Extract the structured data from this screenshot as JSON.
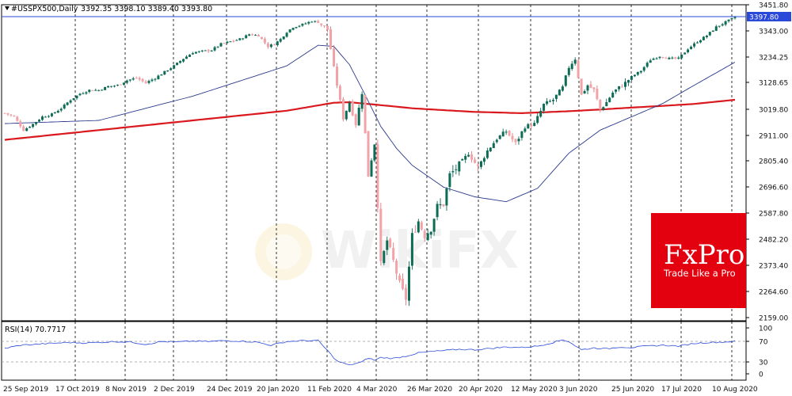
{
  "header": {
    "symbol": "#USSPX500,Daily",
    "ohlc": "3392.35 3398.10 3389.40 3393.80"
  },
  "brand": {
    "name": "FxPro",
    "tagline": "Trade Like a Pro",
    "color": "#e3000f"
  },
  "watermark": "WikiFX",
  "chart_data": [
    {
      "type": "candlestick",
      "title": "#USSPX500,Daily",
      "yticks": [
        "3451.80",
        "3343.00",
        "3234.25",
        "3128.65",
        "3019.80",
        "2911.00",
        "2805.40",
        "2696.60",
        "2587.80",
        "2482.20",
        "2373.40",
        "2264.60",
        "2159.00"
      ],
      "ylim": [
        2159.0,
        3451.8
      ],
      "xticks": [
        "25 Sep 2019",
        "17 Oct 2019",
        "8 Nov 2019",
        "2 Dec 2019",
        "24 Dec 2019",
        "20 Jan 2020",
        "11 Feb 2020",
        "4 Mar 2020",
        "26 Mar 2020",
        "20 Apr 2020",
        "12 May 2020",
        "3 Jun 2020",
        "25 Jun 2020",
        "17 Jul 2020",
        "10 Aug 2020"
      ],
      "last_price": "3397.80",
      "last_price_color": "#2a49d8",
      "bull_color": "#0e6b55",
      "bear_color": "#f2a3a8",
      "close_path": [
        [
          0,
          3005
        ],
        [
          3,
          2990
        ],
        [
          6,
          2935
        ],
        [
          9,
          2960
        ],
        [
          12,
          2990
        ],
        [
          15,
          3000
        ],
        [
          18,
          3025
        ],
        [
          21,
          3060
        ],
        [
          24,
          3085
        ],
        [
          27,
          3100
        ],
        [
          30,
          3100
        ],
        [
          33,
          3115
        ],
        [
          36,
          3120
        ],
        [
          39,
          3140
        ],
        [
          42,
          3150
        ],
        [
          45,
          3130
        ],
        [
          48,
          3150
        ],
        [
          51,
          3175
        ],
        [
          54,
          3200
        ],
        [
          57,
          3230
        ],
        [
          60,
          3255
        ],
        [
          63,
          3260
        ],
        [
          66,
          3265
        ],
        [
          69,
          3290
        ],
        [
          72,
          3300
        ],
        [
          75,
          3310
        ],
        [
          78,
          3330
        ],
        [
          81,
          3325
        ],
        [
          84,
          3280
        ],
        [
          86,
          3290
        ],
        [
          88,
          3310
        ],
        [
          90,
          3340
        ],
        [
          92,
          3360
        ],
        [
          95,
          3370
        ],
        [
          98,
          3385
        ],
        [
          100,
          3380
        ],
        [
          103,
          3350
        ],
        [
          105,
          3190
        ],
        [
          108,
          2985
        ],
        [
          110,
          3050
        ],
        [
          112,
          2960
        ],
        [
          114,
          3090
        ],
        [
          116,
          2750
        ],
        [
          118,
          2880
        ],
        [
          120,
          2380
        ],
        [
          122,
          2480
        ],
        [
          124,
          2395
        ],
        [
          126,
          2300
        ],
        [
          128,
          2240
        ],
        [
          130,
          2500
        ],
        [
          132,
          2560
        ],
        [
          134,
          2500
        ],
        [
          136,
          2530
        ],
        [
          138,
          2620
        ],
        [
          140,
          2630
        ],
        [
          142,
          2750
        ],
        [
          145,
          2790
        ],
        [
          148,
          2840
        ],
        [
          151,
          2780
        ],
        [
          154,
          2850
        ],
        [
          157,
          2900
        ],
        [
          160,
          2930
        ],
        [
          163,
          2880
        ],
        [
          166,
          2950
        ],
        [
          169,
          2960
        ],
        [
          172,
          3040
        ],
        [
          175,
          3060
        ],
        [
          178,
          3110
        ],
        [
          180,
          3195
        ],
        [
          182,
          3230
        ],
        [
          184,
          3080
        ],
        [
          186,
          3120
        ],
        [
          188,
          3100
        ],
        [
          190,
          3020
        ],
        [
          192,
          3050
        ],
        [
          194,
          3090
        ],
        [
          196,
          3110
        ],
        [
          198,
          3130
        ],
        [
          200,
          3155
        ],
        [
          203,
          3180
        ],
        [
          206,
          3225
        ],
        [
          209,
          3240
        ],
        [
          212,
          3230
        ],
        [
          215,
          3230
        ],
        [
          218,
          3270
        ],
        [
          221,
          3300
        ],
        [
          224,
          3325
        ],
        [
          227,
          3360
        ],
        [
          230,
          3380
        ],
        [
          233,
          3400
        ]
      ],
      "ma_fast": [
        [
          0,
          2962
        ],
        [
          30,
          2975
        ],
        [
          60,
          3075
        ],
        [
          90,
          3200
        ],
        [
          100,
          3285
        ],
        [
          105,
          3280
        ],
        [
          110,
          3205
        ],
        [
          115,
          3080
        ],
        [
          120,
          2950
        ],
        [
          125,
          2860
        ],
        [
          130,
          2790
        ],
        [
          140,
          2700
        ],
        [
          150,
          2660
        ],
        [
          160,
          2640
        ],
        [
          170,
          2695
        ],
        [
          180,
          2840
        ],
        [
          190,
          2935
        ],
        [
          200,
          2990
        ],
        [
          210,
          3045
        ],
        [
          220,
          3120
        ],
        [
          233,
          3215
        ]
      ],
      "ma_slow": [
        [
          0,
          2895
        ],
        [
          30,
          2935
        ],
        [
          60,
          2975
        ],
        [
          90,
          3015
        ],
        [
          105,
          3048
        ],
        [
          110,
          3050
        ],
        [
          120,
          3038
        ],
        [
          130,
          3025
        ],
        [
          150,
          3010
        ],
        [
          165,
          3005
        ],
        [
          180,
          3013
        ],
        [
          190,
          3020
        ],
        [
          200,
          3028
        ],
        [
          210,
          3035
        ],
        [
          220,
          3043
        ],
        [
          233,
          3060
        ]
      ]
    },
    {
      "type": "line",
      "title": "RSI(14) 70.7717",
      "label": "RSI(14)",
      "value": "70.7717",
      "yticks": [
        "100",
        "70",
        "30",
        "0"
      ],
      "ylim": [
        0,
        100
      ],
      "levels": [
        70,
        30
      ],
      "line_color": "#2a49d8",
      "values": [
        [
          0,
          55
        ],
        [
          5,
          62
        ],
        [
          10,
          64
        ],
        [
          15,
          66
        ],
        [
          20,
          68
        ],
        [
          25,
          67
        ],
        [
          30,
          68
        ],
        [
          35,
          70
        ],
        [
          40,
          69
        ],
        [
          45,
          64
        ],
        [
          50,
          70
        ],
        [
          55,
          69
        ],
        [
          60,
          71
        ],
        [
          65,
          70
        ],
        [
          70,
          72
        ],
        [
          75,
          71
        ],
        [
          80,
          69
        ],
        [
          85,
          62
        ],
        [
          90,
          70
        ],
        [
          95,
          72
        ],
        [
          100,
          72
        ],
        [
          103,
          50
        ],
        [
          106,
          27
        ],
        [
          110,
          18
        ],
        [
          112,
          22
        ],
        [
          114,
          25
        ],
        [
          116,
          34
        ],
        [
          118,
          29
        ],
        [
          120,
          35
        ],
        [
          124,
          33
        ],
        [
          128,
          38
        ],
        [
          132,
          45
        ],
        [
          136,
          48
        ],
        [
          140,
          50
        ],
        [
          145,
          53
        ],
        [
          150,
          52
        ],
        [
          155,
          55
        ],
        [
          160,
          58
        ],
        [
          165,
          57
        ],
        [
          170,
          60
        ],
        [
          175,
          68
        ],
        [
          178,
          74
        ],
        [
          180,
          70
        ],
        [
          184,
          52
        ],
        [
          188,
          56
        ],
        [
          192,
          54
        ],
        [
          196,
          58
        ],
        [
          200,
          57
        ],
        [
          205,
          60
        ],
        [
          210,
          62
        ],
        [
          215,
          60
        ],
        [
          220,
          66
        ],
        [
          225,
          68
        ],
        [
          230,
          69
        ],
        [
          233,
          70.8
        ]
      ]
    }
  ]
}
